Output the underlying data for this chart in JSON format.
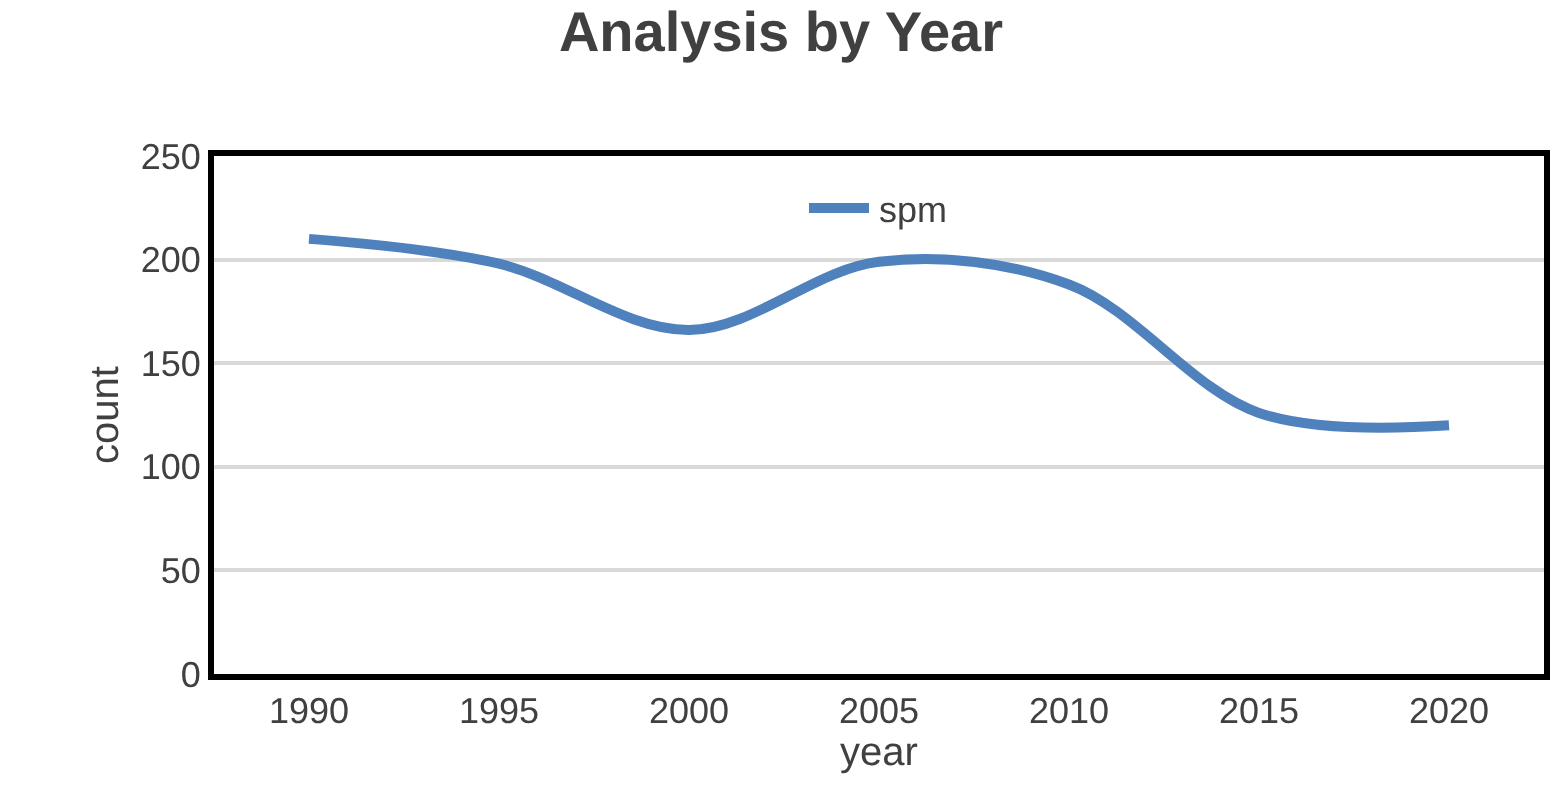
{
  "chart_data": {
    "type": "line",
    "title": "Analysis by Year",
    "xlabel": "year",
    "ylabel": "count",
    "categories": [
      "1990",
      "1995",
      "2000",
      "2005",
      "2010",
      "2015",
      "2020"
    ],
    "series": [
      {
        "name": "spm",
        "color": "#4f81bd",
        "values": [
          210,
          198,
          166,
          199,
          188,
          126,
          120
        ]
      }
    ],
    "ylim": [
      0,
      250
    ],
    "yticks": [
      0,
      50,
      100,
      150,
      200,
      250
    ],
    "grid": "y",
    "legend": "top",
    "marker": "none",
    "line_style": "solid"
  }
}
